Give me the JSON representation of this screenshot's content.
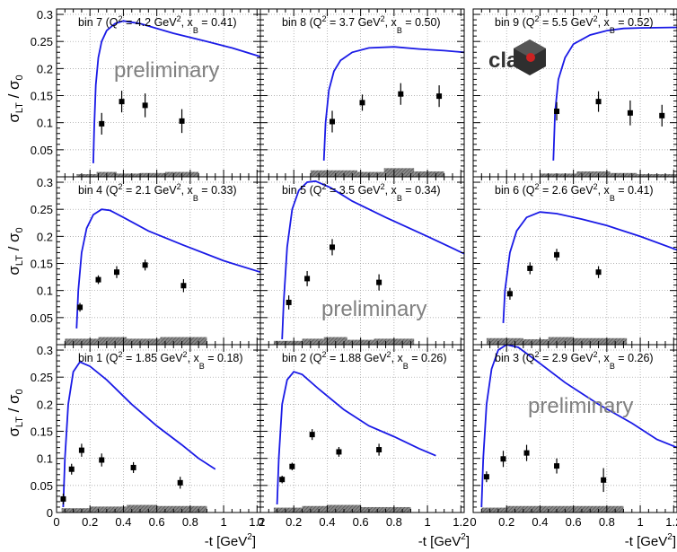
{
  "figure": {
    "ylabel_main": "σ",
    "ylabel_sub1": "LT",
    "ylabel_mid": " / σ",
    "ylabel_sub2": "0",
    "xlabel_main": "-t [GeV",
    "xlabel_sup": "2",
    "xlabel_end": "]",
    "watermark": "preliminary",
    "logo_text": "clas",
    "colors": {
      "model_curve": "#1a1ae6",
      "points": "#000000",
      "systematics": "#7f7f7f",
      "frame": "#000000",
      "grid": "#9a9a9a",
      "watermark": "#808080",
      "logo_dark": "#333333",
      "logo_red": "#cc2222"
    }
  },
  "chart_data": [
    {
      "type": "scatter",
      "panel": 7,
      "label": {
        "bin": "bin 7",
        "q2": "4.2",
        "xb": "0.41"
      },
      "xlim": [
        0,
        1.22
      ],
      "ylim": [
        0,
        0.31
      ],
      "xticks": [
        "0",
        "0.2",
        "0.4",
        "0.6",
        "0.8",
        "1",
        "1.2"
      ],
      "yticks": [
        "0.05",
        "0.1",
        "0.15",
        "0.2",
        "0.25",
        "0.3"
      ],
      "points": [
        {
          "x": 0.27,
          "y": 0.098,
          "err": 0.02
        },
        {
          "x": 0.39,
          "y": 0.139,
          "err": 0.02
        },
        {
          "x": 0.53,
          "y": 0.132,
          "err": 0.022
        },
        {
          "x": 0.75,
          "y": 0.103,
          "err": 0.022
        }
      ],
      "model": [
        [
          0.22,
          0.025
        ],
        [
          0.225,
          0.09
        ],
        [
          0.235,
          0.17
        ],
        [
          0.25,
          0.22
        ],
        [
          0.27,
          0.25
        ],
        [
          0.3,
          0.27
        ],
        [
          0.35,
          0.283
        ],
        [
          0.4,
          0.288
        ],
        [
          0.5,
          0.283
        ],
        [
          0.7,
          0.265
        ],
        [
          0.9,
          0.25
        ],
        [
          1.05,
          0.238
        ],
        [
          1.22,
          0.222
        ]
      ],
      "systematics": [
        [
          0.12,
          0.24,
          0.005
        ],
        [
          0.24,
          0.36,
          0.009
        ],
        [
          0.36,
          0.5,
          0.006
        ],
        [
          0.5,
          0.65,
          0.007
        ],
        [
          0.65,
          0.85,
          0.009
        ]
      ]
    },
    {
      "type": "scatter",
      "panel": 8,
      "label": {
        "bin": "bin 8",
        "q2": "3.7",
        "xb": "0.50"
      },
      "xlim": [
        0,
        1.22
      ],
      "ylim": [
        0,
        0.31
      ],
      "xticks": [
        "0",
        "0.2",
        "0.4",
        "0.6",
        "0.8",
        "1",
        "1.2"
      ],
      "yticks": [
        "0.05",
        "0.1",
        "0.15",
        "0.2",
        "0.25",
        "0.3"
      ],
      "points": [
        {
          "x": 0.43,
          "y": 0.102,
          "err": 0.02
        },
        {
          "x": 0.61,
          "y": 0.137,
          "err": 0.015
        },
        {
          "x": 0.84,
          "y": 0.153,
          "err": 0.02
        },
        {
          "x": 1.07,
          "y": 0.149,
          "err": 0.02
        }
      ],
      "model": [
        [
          0.38,
          0.03
        ],
        [
          0.39,
          0.1
        ],
        [
          0.41,
          0.16
        ],
        [
          0.44,
          0.195
        ],
        [
          0.48,
          0.215
        ],
        [
          0.55,
          0.23
        ],
        [
          0.65,
          0.238
        ],
        [
          0.8,
          0.24
        ],
        [
          0.95,
          0.236
        ],
        [
          1.1,
          0.233
        ],
        [
          1.22,
          0.23
        ]
      ],
      "systematics": [
        [
          0.3,
          0.58,
          0.012
        ],
        [
          0.58,
          0.74,
          0.009
        ],
        [
          0.74,
          0.92,
          0.016
        ],
        [
          0.92,
          1.1,
          0.01
        ]
      ]
    },
    {
      "type": "scatter",
      "panel": 9,
      "label": {
        "bin": "bin 9",
        "q2": "5.5",
        "xb": "0.52"
      },
      "xlim": [
        0,
        1.22
      ],
      "ylim": [
        0,
        0.31
      ],
      "xticks": [
        "0",
        "0.2",
        "0.4",
        "0.6",
        "0.8",
        "1",
        "1.2"
      ],
      "yticks": [
        "0.05",
        "0.1",
        "0.15",
        "0.2",
        "0.25",
        "0.3"
      ],
      "points": [
        {
          "x": 0.5,
          "y": 0.121,
          "err": 0.017
        },
        {
          "x": 0.75,
          "y": 0.139,
          "err": 0.019
        },
        {
          "x": 0.94,
          "y": 0.118,
          "err": 0.023
        },
        {
          "x": 1.13,
          "y": 0.113,
          "err": 0.02
        }
      ],
      "model": [
        [
          0.48,
          0.03
        ],
        [
          0.49,
          0.12
        ],
        [
          0.51,
          0.18
        ],
        [
          0.55,
          0.22
        ],
        [
          0.6,
          0.245
        ],
        [
          0.7,
          0.262
        ],
        [
          0.8,
          0.27
        ],
        [
          0.9,
          0.274
        ],
        [
          1.0,
          0.275
        ],
        [
          1.22,
          0.276
        ]
      ],
      "systematics": [
        [
          0.4,
          0.62,
          0.006
        ],
        [
          0.62,
          0.82,
          0.01
        ],
        [
          0.82,
          0.98,
          0.007
        ],
        [
          0.98,
          1.22,
          0.005
        ]
      ]
    },
    {
      "type": "scatter",
      "panel": 4,
      "label": {
        "bin": "bin 4",
        "q2": "2.1",
        "xb": "0.33"
      },
      "xlim": [
        0,
        1.22
      ],
      "ylim": [
        0,
        0.31
      ],
      "xticks": [
        "0",
        "0.2",
        "0.4",
        "0.6",
        "0.8",
        "1",
        "1.2"
      ],
      "yticks": [
        "0.05",
        "0.1",
        "0.15",
        "0.2",
        "0.25",
        "0.3"
      ],
      "points": [
        {
          "x": 0.14,
          "y": 0.069,
          "err": 0.008
        },
        {
          "x": 0.25,
          "y": 0.12,
          "err": 0.008
        },
        {
          "x": 0.36,
          "y": 0.134,
          "err": 0.011
        },
        {
          "x": 0.53,
          "y": 0.147,
          "err": 0.01
        },
        {
          "x": 0.76,
          "y": 0.109,
          "err": 0.012
        }
      ],
      "model": [
        [
          0.12,
          0.03
        ],
        [
          0.13,
          0.1
        ],
        [
          0.15,
          0.17
        ],
        [
          0.18,
          0.215
        ],
        [
          0.22,
          0.24
        ],
        [
          0.27,
          0.25
        ],
        [
          0.32,
          0.248
        ],
        [
          0.4,
          0.235
        ],
        [
          0.55,
          0.21
        ],
        [
          0.75,
          0.185
        ],
        [
          1.0,
          0.155
        ],
        [
          1.22,
          0.134
        ]
      ],
      "systematics": [
        [
          0.05,
          0.25,
          0.011
        ],
        [
          0.25,
          0.42,
          0.014
        ],
        [
          0.42,
          0.62,
          0.011
        ],
        [
          0.62,
          0.9,
          0.014
        ]
      ]
    },
    {
      "type": "scatter",
      "panel": 5,
      "label": {
        "bin": "bin 5",
        "q2": "3.5",
        "xb": "0.34"
      },
      "xlim": [
        0,
        1.22
      ],
      "ylim": [
        0,
        0.31
      ],
      "xticks": [
        "0",
        "0.2",
        "0.4",
        "0.6",
        "0.8",
        "1",
        "1.2"
      ],
      "yticks": [
        "0.05",
        "0.1",
        "0.15",
        "0.2",
        "0.25",
        "0.3"
      ],
      "points": [
        {
          "x": 0.17,
          "y": 0.078,
          "err": 0.013
        },
        {
          "x": 0.28,
          "y": 0.122,
          "err": 0.014
        },
        {
          "x": 0.43,
          "y": 0.18,
          "err": 0.015
        },
        {
          "x": 0.71,
          "y": 0.115,
          "err": 0.015
        }
      ],
      "model": [
        [
          0.13,
          0.01
        ],
        [
          0.14,
          0.08
        ],
        [
          0.16,
          0.18
        ],
        [
          0.19,
          0.25
        ],
        [
          0.23,
          0.285
        ],
        [
          0.28,
          0.3
        ],
        [
          0.33,
          0.302
        ],
        [
          0.42,
          0.29
        ],
        [
          0.55,
          0.265
        ],
        [
          0.75,
          0.235
        ],
        [
          1.0,
          0.2
        ],
        [
          1.22,
          0.168
        ]
      ],
      "systematics": [
        [
          0.08,
          0.25,
          0.007
        ],
        [
          0.25,
          0.38,
          0.011
        ],
        [
          0.38,
          0.52,
          0.014
        ],
        [
          0.52,
          0.68,
          0.009
        ],
        [
          0.68,
          0.92,
          0.011
        ]
      ]
    },
    {
      "type": "scatter",
      "panel": 6,
      "label": {
        "bin": "bin 6",
        "q2": "2.6",
        "xb": "0.41"
      },
      "xlim": [
        0,
        1.22
      ],
      "ylim": [
        0,
        0.31
      ],
      "xticks": [
        "0",
        "0.2",
        "0.4",
        "0.6",
        "0.8",
        "1",
        "1.2"
      ],
      "yticks": [
        "0.05",
        "0.1",
        "0.15",
        "0.2",
        "0.25",
        "0.3"
      ],
      "points": [
        {
          "x": 0.22,
          "y": 0.094,
          "err": 0.011
        },
        {
          "x": 0.34,
          "y": 0.141,
          "err": 0.011
        },
        {
          "x": 0.5,
          "y": 0.166,
          "err": 0.011
        },
        {
          "x": 0.75,
          "y": 0.134,
          "err": 0.011
        }
      ],
      "model": [
        [
          0.18,
          0.04
        ],
        [
          0.19,
          0.1
        ],
        [
          0.22,
          0.17
        ],
        [
          0.26,
          0.21
        ],
        [
          0.32,
          0.235
        ],
        [
          0.4,
          0.245
        ],
        [
          0.5,
          0.242
        ],
        [
          0.65,
          0.232
        ],
        [
          0.8,
          0.22
        ],
        [
          1.0,
          0.2
        ],
        [
          1.22,
          0.175
        ]
      ],
      "systematics": [
        [
          0.08,
          0.3,
          0.012
        ],
        [
          0.3,
          0.45,
          0.01
        ],
        [
          0.45,
          0.6,
          0.014
        ],
        [
          0.6,
          0.92,
          0.012
        ]
      ]
    },
    {
      "type": "scatter",
      "panel": 1,
      "label": {
        "bin": "bin 1",
        "q2": "1.85",
        "xb": "0.18"
      },
      "xlim": [
        0,
        1.22
      ],
      "ylim": [
        0,
        0.31
      ],
      "xticks": [
        "0",
        "0.2",
        "0.4",
        "0.6",
        "0.8",
        "1",
        "1.2"
      ],
      "yticks": [
        "0.05",
        "0.1",
        "0.15",
        "0.2",
        "0.25",
        "0.3"
      ],
      "points": [
        {
          "x": 0.04,
          "y": 0.025,
          "err": 0.01
        },
        {
          "x": 0.09,
          "y": 0.08,
          "err": 0.01
        },
        {
          "x": 0.15,
          "y": 0.115,
          "err": 0.012
        },
        {
          "x": 0.27,
          "y": 0.097,
          "err": 0.012
        },
        {
          "x": 0.46,
          "y": 0.083,
          "err": 0.01
        },
        {
          "x": 0.74,
          "y": 0.055,
          "err": 0.011
        }
      ],
      "model": [
        [
          0.04,
          0.01
        ],
        [
          0.05,
          0.1
        ],
        [
          0.07,
          0.2
        ],
        [
          0.1,
          0.26
        ],
        [
          0.14,
          0.278
        ],
        [
          0.2,
          0.27
        ],
        [
          0.3,
          0.245
        ],
        [
          0.45,
          0.2
        ],
        [
          0.6,
          0.16
        ],
        [
          0.75,
          0.125
        ],
        [
          0.85,
          0.1
        ],
        [
          0.95,
          0.08
        ]
      ],
      "systematics": [
        [
          0.03,
          0.2,
          0.008
        ],
        [
          0.2,
          0.42,
          0.011
        ],
        [
          0.42,
          0.6,
          0.014
        ],
        [
          0.6,
          0.9,
          0.012
        ]
      ]
    },
    {
      "type": "scatter",
      "panel": 2,
      "label": {
        "bin": "bin 2",
        "q2": "1.88",
        "xb": "0.26"
      },
      "xlim": [
        0,
        1.22
      ],
      "ylim": [
        0,
        0.31
      ],
      "xticks": [
        "0",
        "0.2",
        "0.4",
        "0.6",
        "0.8",
        "1",
        "1.2"
      ],
      "yticks": [
        "0.05",
        "0.1",
        "0.15",
        "0.2",
        "0.25",
        "0.3"
      ],
      "points": [
        {
          "x": 0.13,
          "y": 0.061,
          "err": 0.007
        },
        {
          "x": 0.19,
          "y": 0.085,
          "err": 0.007
        },
        {
          "x": 0.31,
          "y": 0.144,
          "err": 0.01
        },
        {
          "x": 0.47,
          "y": 0.112,
          "err": 0.009
        },
        {
          "x": 0.71,
          "y": 0.116,
          "err": 0.011
        }
      ],
      "model": [
        [
          0.1,
          0.015
        ],
        [
          0.11,
          0.1
        ],
        [
          0.13,
          0.2
        ],
        [
          0.16,
          0.245
        ],
        [
          0.2,
          0.26
        ],
        [
          0.25,
          0.255
        ],
        [
          0.35,
          0.228
        ],
        [
          0.5,
          0.19
        ],
        [
          0.65,
          0.16
        ],
        [
          0.8,
          0.14
        ],
        [
          0.95,
          0.118
        ],
        [
          1.05,
          0.105
        ]
      ],
      "systematics": [
        [
          0.08,
          0.25,
          0.009
        ],
        [
          0.25,
          0.4,
          0.012
        ],
        [
          0.4,
          0.6,
          0.014
        ],
        [
          0.6,
          0.9,
          0.01
        ]
      ]
    },
    {
      "type": "scatter",
      "panel": 3,
      "label": {
        "bin": "bin 3",
        "q2": "2.9",
        "xb": "0.26"
      },
      "xlim": [
        0,
        1.22
      ],
      "ylim": [
        0,
        0.31
      ],
      "xticks": [
        "0",
        "0.2",
        "0.4",
        "0.6",
        "0.8",
        "1",
        "1.2"
      ],
      "yticks": [
        "0.05",
        "0.1",
        "0.15",
        "0.2",
        "0.25",
        "0.3"
      ],
      "points": [
        {
          "x": 0.08,
          "y": 0.066,
          "err": 0.01
        },
        {
          "x": 0.18,
          "y": 0.099,
          "err": 0.015
        },
        {
          "x": 0.32,
          "y": 0.11,
          "err": 0.015
        },
        {
          "x": 0.5,
          "y": 0.086,
          "err": 0.014
        },
        {
          "x": 0.78,
          "y": 0.06,
          "err": 0.022
        }
      ],
      "model": [
        [
          0.05,
          0.01
        ],
        [
          0.06,
          0.1
        ],
        [
          0.08,
          0.2
        ],
        [
          0.11,
          0.265
        ],
        [
          0.15,
          0.3
        ],
        [
          0.2,
          0.31
        ],
        [
          0.27,
          0.305
        ],
        [
          0.38,
          0.28
        ],
        [
          0.55,
          0.24
        ],
        [
          0.75,
          0.2
        ],
        [
          0.95,
          0.165
        ],
        [
          1.1,
          0.135
        ],
        [
          1.22,
          0.12
        ]
      ],
      "systematics": [
        [
          0.05,
          0.2,
          0.009
        ],
        [
          0.2,
          0.45,
          0.012
        ],
        [
          0.45,
          0.62,
          0.012
        ],
        [
          0.62,
          0.9,
          0.012
        ]
      ]
    }
  ]
}
